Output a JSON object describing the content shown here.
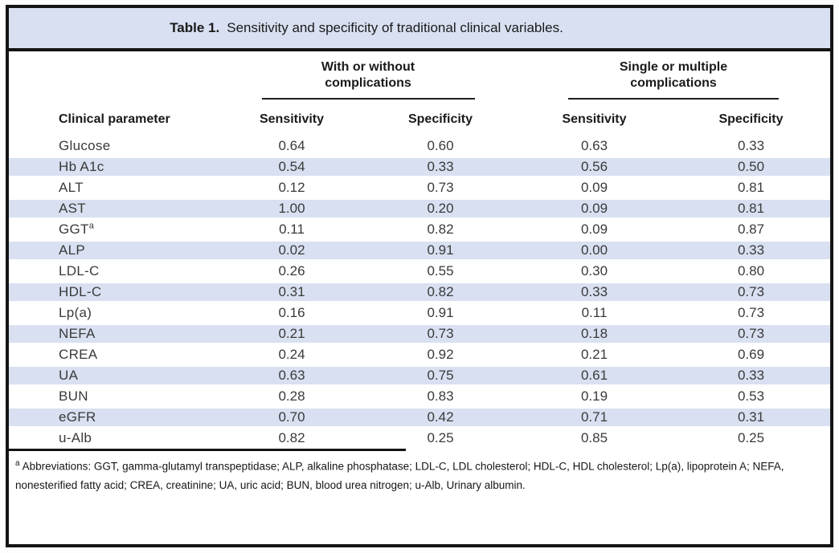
{
  "title": {
    "label": "Table 1.",
    "text": "Sensitivity and specificity of traditional clinical variables."
  },
  "header": {
    "param_col": "Clinical parameter",
    "groups": [
      {
        "line1": "With or without",
        "line2": "complications",
        "sub": [
          "Sensitivity",
          "Specificity"
        ]
      },
      {
        "line1": "Single or multiple",
        "line2": "complications",
        "sub": [
          "Sensitivity",
          "Specificity"
        ]
      }
    ]
  },
  "rows": [
    {
      "param": "Glucose",
      "sup": "",
      "values": [
        "0.64",
        "0.60",
        "0.63",
        "0.33"
      ]
    },
    {
      "param": "Hb A1c",
      "sup": "",
      "values": [
        "0.54",
        "0.33",
        "0.56",
        "0.50"
      ]
    },
    {
      "param": "ALT",
      "sup": "",
      "values": [
        "0.12",
        "0.73",
        "0.09",
        "0.81"
      ]
    },
    {
      "param": "AST",
      "sup": "",
      "values": [
        "1.00",
        "0.20",
        "0.09",
        "0.81"
      ]
    },
    {
      "param": "GGT",
      "sup": "a",
      "values": [
        "0.11",
        "0.82",
        "0.09",
        "0.87"
      ]
    },
    {
      "param": "ALP",
      "sup": "",
      "values": [
        "0.02",
        "0.91",
        "0.00",
        "0.33"
      ]
    },
    {
      "param": "LDL-C",
      "sup": "",
      "values": [
        "0.26",
        "0.55",
        "0.30",
        "0.80"
      ]
    },
    {
      "param": "HDL-C",
      "sup": "",
      "values": [
        "0.31",
        "0.82",
        "0.33",
        "0.73"
      ]
    },
    {
      "param": "Lp(a)",
      "sup": "",
      "values": [
        "0.16",
        "0.91",
        "0.11",
        "0.73"
      ]
    },
    {
      "param": "NEFA",
      "sup": "",
      "values": [
        "0.21",
        "0.73",
        "0.18",
        "0.73"
      ]
    },
    {
      "param": "CREA",
      "sup": "",
      "values": [
        "0.24",
        "0.92",
        "0.21",
        "0.69"
      ]
    },
    {
      "param": "UA",
      "sup": "",
      "values": [
        "0.63",
        "0.75",
        "0.61",
        "0.33"
      ]
    },
    {
      "param": "BUN",
      "sup": "",
      "values": [
        "0.28",
        "0.83",
        "0.19",
        "0.53"
      ]
    },
    {
      "param": "eGFR",
      "sup": "",
      "values": [
        "0.70",
        "0.42",
        "0.71",
        "0.31"
      ]
    },
    {
      "param": "u-Alb",
      "sup": "",
      "values": [
        "0.82",
        "0.25",
        "0.85",
        "0.25"
      ]
    }
  ],
  "footnote": {
    "sup": "a",
    "text": " Abbreviations: GGT, gamma-glutamyl transpeptidase; ALP, alkaline phosphatase; LDL-C, LDL cholesterol; HDL-C, HDL cholesterol; Lp(a), lipoprotein A; NEFA, nonesterified fatty acid; CREA, creatinine; UA, uric acid; BUN, blood urea nitrogen; u-Alb, Urinary albumin."
  },
  "colors": {
    "band_blue": "#d8e0f1",
    "frame_border": "#141414",
    "heading_text": "#1a1a1a",
    "body_text": "#3a3a3a"
  }
}
